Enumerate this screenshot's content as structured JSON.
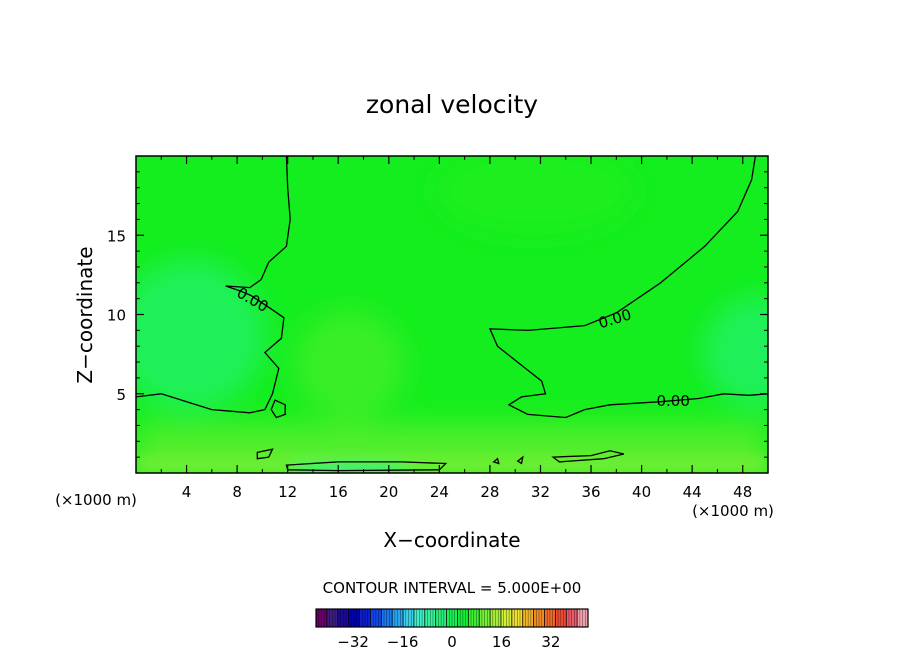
{
  "chart_data": {
    "type": "heatmap",
    "title": "zonal velocity",
    "xlabel": "X−coordinate",
    "ylabel": "Z−coordinate",
    "x_unit_left": "(×1000 m)",
    "x_unit_right": "(×1000 m)",
    "xlim": [
      0,
      50
    ],
    "ylim": [
      0,
      20
    ],
    "x_ticks": [
      4,
      8,
      12,
      16,
      20,
      24,
      28,
      32,
      36,
      40,
      44,
      48
    ],
    "y_ticks": [
      5,
      10,
      15
    ],
    "contour_interval_text": "CONTOUR INTERVAL = 5.000E+00",
    "contour_labels": [
      {
        "text": "0.00",
        "x": 9.2,
        "y": 10.9,
        "angle": 30
      },
      {
        "text": "0.00",
        "x": 37.9,
        "y": 9.7,
        "angle": -17
      },
      {
        "text": "0.00",
        "x": 42.5,
        "y": 4.5,
        "angle": 0
      }
    ],
    "contours_zero": [
      {
        "closed": false,
        "points": [
          [
            11.9,
            20.0
          ],
          [
            12.0,
            18.0
          ],
          [
            12.2,
            16.0
          ],
          [
            11.9,
            14.3
          ],
          [
            10.5,
            13.3
          ],
          [
            9.9,
            12.2
          ],
          [
            9.0,
            11.7
          ],
          [
            7.1,
            11.8
          ],
          [
            8.2,
            11.5
          ],
          [
            9.1,
            11.2
          ],
          [
            10.6,
            10.4
          ],
          [
            11.7,
            9.8
          ],
          [
            11.5,
            8.5
          ],
          [
            10.2,
            7.6
          ],
          [
            11.3,
            6.6
          ],
          [
            10.8,
            5.0
          ],
          [
            10.2,
            4.0
          ],
          [
            9.0,
            3.8
          ],
          [
            6.0,
            4.0
          ],
          [
            2.0,
            5.0
          ],
          [
            0.0,
            4.8
          ]
        ]
      },
      {
        "closed": false,
        "points": [
          [
            49.0,
            20.0
          ],
          [
            48.7,
            18.5
          ],
          [
            47.6,
            16.5
          ],
          [
            45.0,
            14.3
          ],
          [
            41.5,
            12.0
          ],
          [
            38.0,
            10.1
          ],
          [
            35.5,
            9.3
          ],
          [
            31.0,
            9.0
          ],
          [
            28.0,
            9.1
          ],
          [
            28.6,
            8.0
          ],
          [
            30.5,
            6.8
          ],
          [
            32.1,
            5.8
          ],
          [
            32.4,
            5.0
          ],
          [
            30.5,
            4.8
          ],
          [
            29.5,
            4.3
          ],
          [
            31.0,
            3.7
          ],
          [
            34.0,
            3.5
          ],
          [
            35.5,
            4.0
          ],
          [
            37.5,
            4.3
          ],
          [
            41.5,
            4.5
          ],
          [
            44.5,
            4.7
          ],
          [
            46.5,
            5.0
          ],
          [
            48.5,
            4.9
          ],
          [
            50.0,
            5.0
          ]
        ]
      },
      {
        "closed": true,
        "points": [
          [
            11.0,
            4.6
          ],
          [
            11.8,
            4.3
          ],
          [
            11.8,
            3.7
          ],
          [
            11.1,
            3.5
          ],
          [
            10.7,
            4.0
          ]
        ]
      },
      {
        "closed": true,
        "points": [
          [
            9.6,
            1.3
          ],
          [
            10.8,
            1.5
          ],
          [
            10.5,
            1.0
          ],
          [
            9.6,
            0.9
          ]
        ]
      },
      {
        "closed": true,
        "points": [
          [
            11.9,
            0.5
          ],
          [
            16.0,
            0.7
          ],
          [
            21.0,
            0.7
          ],
          [
            24.5,
            0.6
          ],
          [
            24.0,
            0.2
          ],
          [
            16.0,
            0.15
          ],
          [
            12.0,
            0.2
          ]
        ]
      },
      {
        "closed": true,
        "points": [
          [
            33.0,
            1.0
          ],
          [
            36.0,
            1.1
          ],
          [
            37.5,
            1.4
          ],
          [
            38.6,
            1.2
          ],
          [
            37.0,
            0.9
          ],
          [
            33.5,
            0.7
          ]
        ]
      },
      {
        "closed": true,
        "points": [
          [
            30.2,
            0.75
          ],
          [
            30.6,
            1.0
          ],
          [
            30.5,
            0.6
          ]
        ]
      },
      {
        "closed": true,
        "points": [
          [
            28.3,
            0.7
          ],
          [
            28.6,
            0.9
          ],
          [
            28.7,
            0.6
          ]
        ]
      }
    ],
    "colorbar": {
      "min": -44,
      "max": 44,
      "ticks": [
        -32,
        -16,
        0,
        16,
        32
      ],
      "tick_labels": [
        "−32",
        "−16",
        "0",
        "16",
        "32"
      ],
      "colors": [
        "#6a006a",
        "#3c1d80",
        "#1b0a9a",
        "#0000b4",
        "#0a1ed2",
        "#1446ec",
        "#1a78f0",
        "#29a6f2",
        "#3ad0ec",
        "#3eefc8",
        "#38f2a0",
        "#28f07a",
        "#1af058",
        "#14f03a",
        "#3cf030",
        "#72f03a",
        "#a6ee3c",
        "#d2ee38",
        "#f0de32",
        "#f0b428",
        "#f08c28",
        "#f06a28",
        "#f04a34",
        "#ec5a6a",
        "#f2a0b0"
      ]
    },
    "field_colors": {
      "base": "#14ee1e",
      "weak_negative": "#2cf28c",
      "weak_positive": "#6aee30",
      "positive_top": "#20ee1c"
    }
  }
}
